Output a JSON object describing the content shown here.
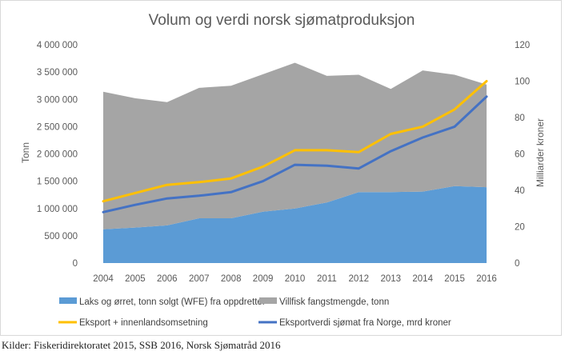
{
  "chart_data": {
    "type": "area",
    "title": "Volum og verdi norsk sjømatproduksjon",
    "categories": [
      "2004",
      "2005",
      "2006",
      "2007",
      "2008",
      "2009",
      "2010",
      "2011",
      "2012",
      "2013",
      "2014",
      "2015",
      "2016"
    ],
    "ylabel_left": "Tonn",
    "ylabel_right": "Milliarder kroner",
    "ylim_left": [
      0,
      4000000
    ],
    "ylim_right": [
      0,
      120
    ],
    "yticks_left": [
      "0",
      "500 000",
      "1 000 000",
      "1 500 000",
      "2 000 000",
      "2 500 000",
      "3 000 000",
      "3 500 000",
      "4 000 000"
    ],
    "yticks_right": [
      "0",
      "20",
      "40",
      "60",
      "80",
      "100",
      "120"
    ],
    "stacked": true,
    "series": [
      {
        "name": "Laks og ørret, tonn solgt (WFE) fra oppdretter",
        "kind": "area",
        "axis": "left",
        "color": "#5b9bd5",
        "values": [
          620000,
          650000,
          690000,
          820000,
          820000,
          940000,
          1000000,
          1110000,
          1300000,
          1300000,
          1310000,
          1410000,
          1390000
        ]
      },
      {
        "name": "Villfisk fangstmengde, tonn",
        "kind": "area",
        "axis": "left",
        "color": "#a5a5a5",
        "values": [
          2520000,
          2370000,
          2260000,
          2390000,
          2430000,
          2520000,
          2670000,
          2320000,
          2150000,
          1890000,
          2220000,
          2040000,
          1880000
        ]
      },
      {
        "name": "Eksport + innenlandsomsetning",
        "kind": "line",
        "axis": "right",
        "color": "#ffc000",
        "values": [
          34,
          38.5,
          43,
          44.5,
          46.5,
          53,
          62,
          62,
          61,
          71,
          75,
          84.5,
          100
        ]
      },
      {
        "name": "Eksportverdi sjømat fra Norge, mrd kroner",
        "kind": "line",
        "axis": "right",
        "color": "#4472c4",
        "values": [
          28,
          32,
          35.5,
          37,
          39,
          45,
          54,
          53.5,
          52,
          61.5,
          69,
          75,
          91.5
        ]
      }
    ],
    "grid": false,
    "legend_position": "bottom"
  },
  "source_note": "Kilder: Fiskeridirektoratet 2015, SSB 2016, Norsk Sjømatråd 2016"
}
